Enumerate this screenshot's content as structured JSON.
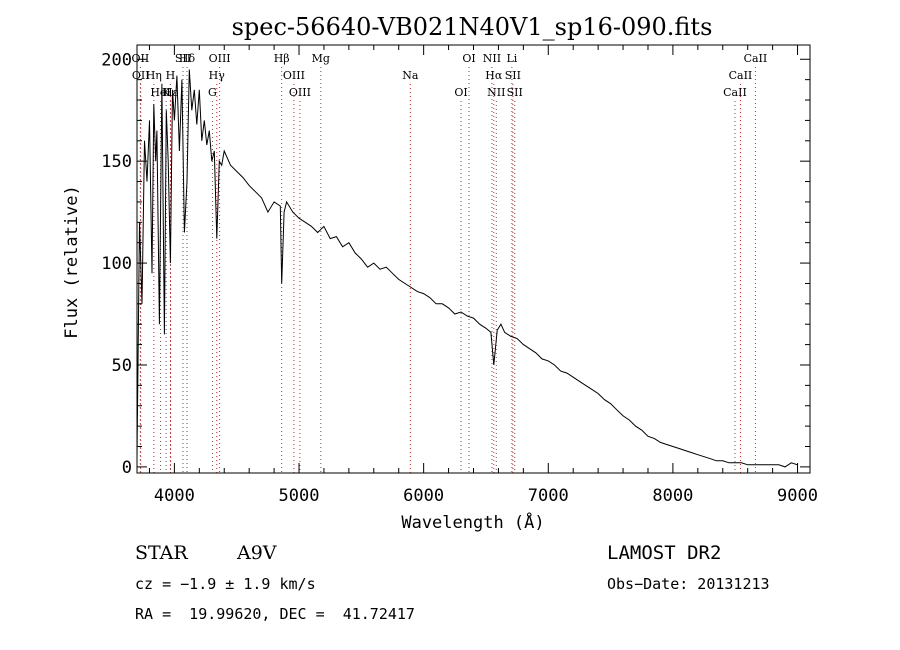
{
  "chart_data": {
    "type": "line",
    "title": "spec-56640-VB021N40V1_sp16-090.fits",
    "xlabel": "Wavelength (Å)",
    "ylabel": "Flux (relative)",
    "xlim": [
      3700,
      9100
    ],
    "ylim": [
      -3,
      207
    ],
    "x_ticks": [
      4000,
      5000,
      6000,
      7000,
      8000,
      9000
    ],
    "y_ticks": [
      0,
      50,
      100,
      150,
      200
    ],
    "grid": false,
    "line_color": "#000000",
    "marker_color": "#b03030",
    "series": [
      {
        "x": [
          3700,
          3720,
          3740,
          3760,
          3780,
          3800,
          3820,
          3835,
          3850,
          3860,
          3880,
          3900,
          3920,
          3935,
          3950,
          3968,
          3985,
          4000,
          4020,
          4040,
          4060,
          4080,
          4101,
          4120,
          4140,
          4160,
          4180,
          4200,
          4220,
          4240,
          4260,
          4280,
          4300,
          4320,
          4340,
          4360,
          4380,
          4400,
          4450,
          4500,
          4550,
          4600,
          4650,
          4700,
          4750,
          4800,
          4850,
          4861,
          4880,
          4900,
          4950,
          5000,
          5050,
          5100,
          5150,
          5200,
          5250,
          5300,
          5350,
          5400,
          5450,
          5500,
          5550,
          5600,
          5650,
          5700,
          5750,
          5800,
          5850,
          5900,
          5950,
          6000,
          6050,
          6100,
          6150,
          6200,
          6250,
          6300,
          6350,
          6400,
          6450,
          6500,
          6540,
          6563,
          6590,
          6620,
          6650,
          6700,
          6750,
          6800,
          6850,
          6900,
          6950,
          7000,
          7050,
          7100,
          7150,
          7200,
          7250,
          7300,
          7350,
          7400,
          7450,
          7500,
          7550,
          7600,
          7650,
          7700,
          7750,
          7800,
          7850,
          7900,
          7950,
          8000,
          8050,
          8100,
          8150,
          8200,
          8250,
          8300,
          8350,
          8400,
          8450,
          8500,
          8550,
          8600,
          8650,
          8700,
          8750,
          8800,
          8850,
          8900,
          8950,
          9000
        ],
        "y": [
          5,
          120,
          80,
          160,
          140,
          170,
          95,
          178,
          150,
          165,
          70,
          188,
          65,
          175,
          150,
          100,
          185,
          170,
          192,
          155,
          190,
          115,
          140,
          195,
          175,
          185,
          168,
          185,
          160,
          170,
          158,
          165,
          150,
          155,
          112,
          150,
          148,
          155,
          148,
          145,
          142,
          138,
          135,
          132,
          125,
          130,
          128,
          90,
          125,
          130,
          125,
          122,
          120,
          118,
          115,
          118,
          112,
          113,
          108,
          110,
          105,
          102,
          98,
          100,
          97,
          98,
          95,
          92,
          90,
          88,
          86,
          85,
          83,
          80,
          80,
          78,
          75,
          76,
          74,
          73,
          70,
          68,
          66,
          50,
          67,
          70,
          66,
          64,
          63,
          60,
          58,
          56,
          53,
          52,
          50,
          47,
          46,
          44,
          42,
          40,
          38,
          36,
          33,
          31,
          28,
          25,
          23,
          20,
          18,
          15,
          14,
          12,
          11,
          10,
          9,
          8,
          7,
          6,
          5,
          4,
          3,
          3,
          2,
          2,
          2,
          1,
          1,
          1,
          1,
          1,
          1,
          0,
          2,
          1
        ]
      }
    ],
    "lines": [
      {
        "name": "Hδ",
        "wl": 4101
      },
      {
        "name": "H",
        "wl": 3968
      },
      {
        "name": "K",
        "wl": 3934
      },
      {
        "name": "OII",
        "wl": 3727
      },
      {
        "name": "OII",
        "wl": 3730
      },
      {
        "name": "HeI",
        "wl": 3889
      },
      {
        "name": "SII",
        "wl": 4069
      },
      {
        "name": "Hη",
        "wl": 3835
      },
      {
        "name": "Hε",
        "wl": 3970
      },
      {
        "name": "OIII",
        "wl": 4363
      },
      {
        "name": "Hγ",
        "wl": 4340
      },
      {
        "name": "G",
        "wl": 4305
      },
      {
        "name": "Hβ",
        "wl": 4861
      },
      {
        "name": "OIII",
        "wl": 4959
      },
      {
        "name": "OIII",
        "wl": 5007
      },
      {
        "name": "Mg",
        "wl": 5175
      },
      {
        "name": "Na",
        "wl": 5893
      },
      {
        "name": "OI",
        "wl": 6300
      },
      {
        "name": "OI",
        "wl": 6364
      },
      {
        "name": "Hα",
        "wl": 6563
      },
      {
        "name": "NII",
        "wl": 6583
      },
      {
        "name": "NII",
        "wl": 6548
      },
      {
        "name": "SII",
        "wl": 6716
      },
      {
        "name": "SII",
        "wl": 6731
      },
      {
        "name": "Li",
        "wl": 6708
      },
      {
        "name": "CaII",
        "wl": 8542
      },
      {
        "name": "CaII",
        "wl": 8498
      },
      {
        "name": "CaII",
        "wl": 8662
      }
    ]
  },
  "info": {
    "class_label": "STAR",
    "subclass": "A9V",
    "survey": "LAMOST DR2",
    "cz": "cz = −1.9 ± 1.9 km/s",
    "obs_date": "Obs−Date: 20131213",
    "coords": "RA =  19.99620, DEC =  41.72417"
  }
}
